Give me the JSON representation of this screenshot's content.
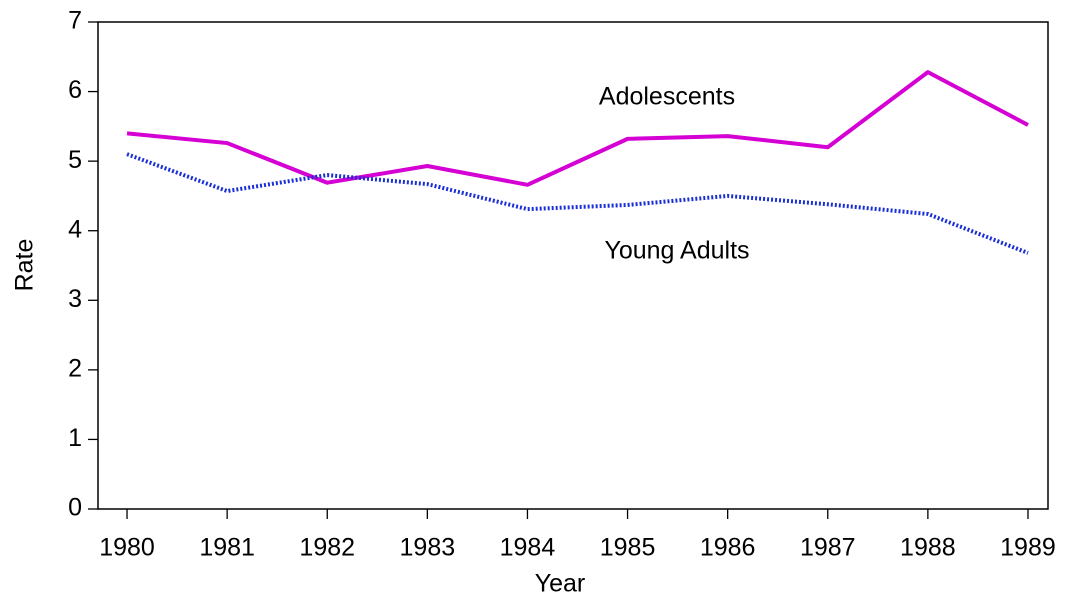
{
  "chart_data": {
    "type": "line",
    "x_label": "Year",
    "y_label": "Rate",
    "x": [
      1980,
      1981,
      1982,
      1983,
      1984,
      1985,
      1986,
      1987,
      1988,
      1989
    ],
    "series": [
      {
        "name": "Adolescents",
        "color": "#d400d4",
        "dash": "solid",
        "values": [
          5.4,
          5.26,
          4.69,
          4.93,
          4.66,
          5.32,
          5.36,
          5.2,
          6.28,
          5.52
        ]
      },
      {
        "name": "Young Adults",
        "color": "#1a2fd6",
        "dash": "dotted",
        "values": [
          5.1,
          4.57,
          4.8,
          4.67,
          4.31,
          4.37,
          4.5,
          4.38,
          4.24,
          3.68
        ]
      }
    ],
    "xlim": [
      1979.71,
      1989.2
    ],
    "xticks": [
      1980,
      1981,
      1982,
      1983,
      1984,
      1985,
      1986,
      1987,
      1988,
      1989
    ],
    "ylim": [
      0,
      7
    ],
    "yticks": [
      0,
      1,
      2,
      3,
      4,
      5,
      6,
      7
    ],
    "grid": false
  }
}
